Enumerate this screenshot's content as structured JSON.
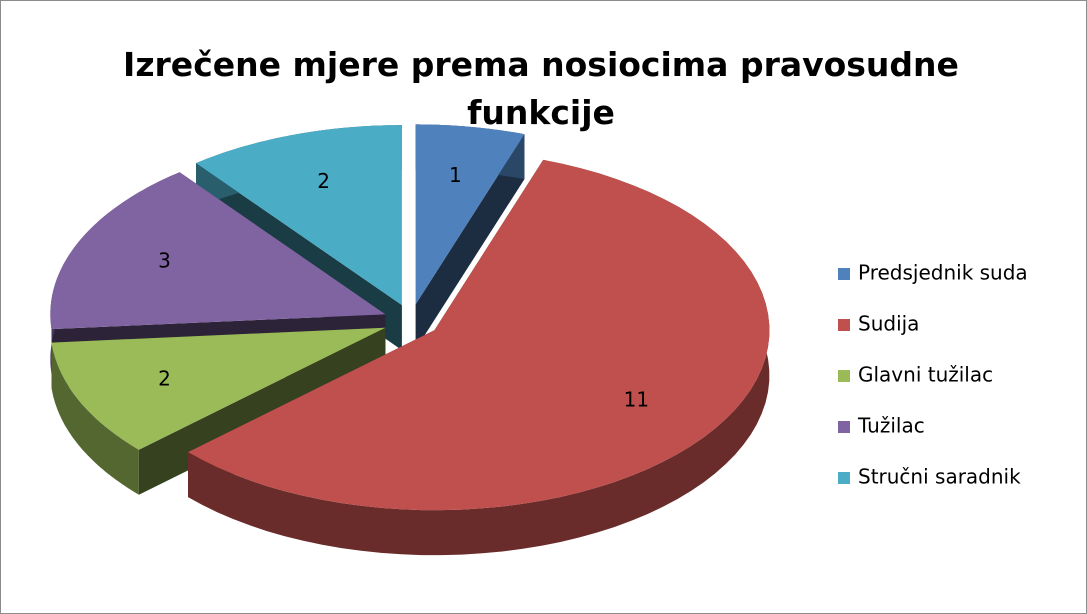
{
  "chart_data": {
    "type": "pie",
    "title": "Izrečene mjere prema nosiocima pravosudne funkcije",
    "categories": [
      "Predsjednik suda",
      "Sudija",
      "Glavni tužilac",
      "Tužilac",
      "Stručni saradnik"
    ],
    "values": [
      1,
      11,
      2,
      3,
      2
    ],
    "colors": [
      "#4f81bd",
      "#c0504d",
      "#9bbb59",
      "#8064a2",
      "#4bacc6"
    ],
    "legend": "right"
  }
}
